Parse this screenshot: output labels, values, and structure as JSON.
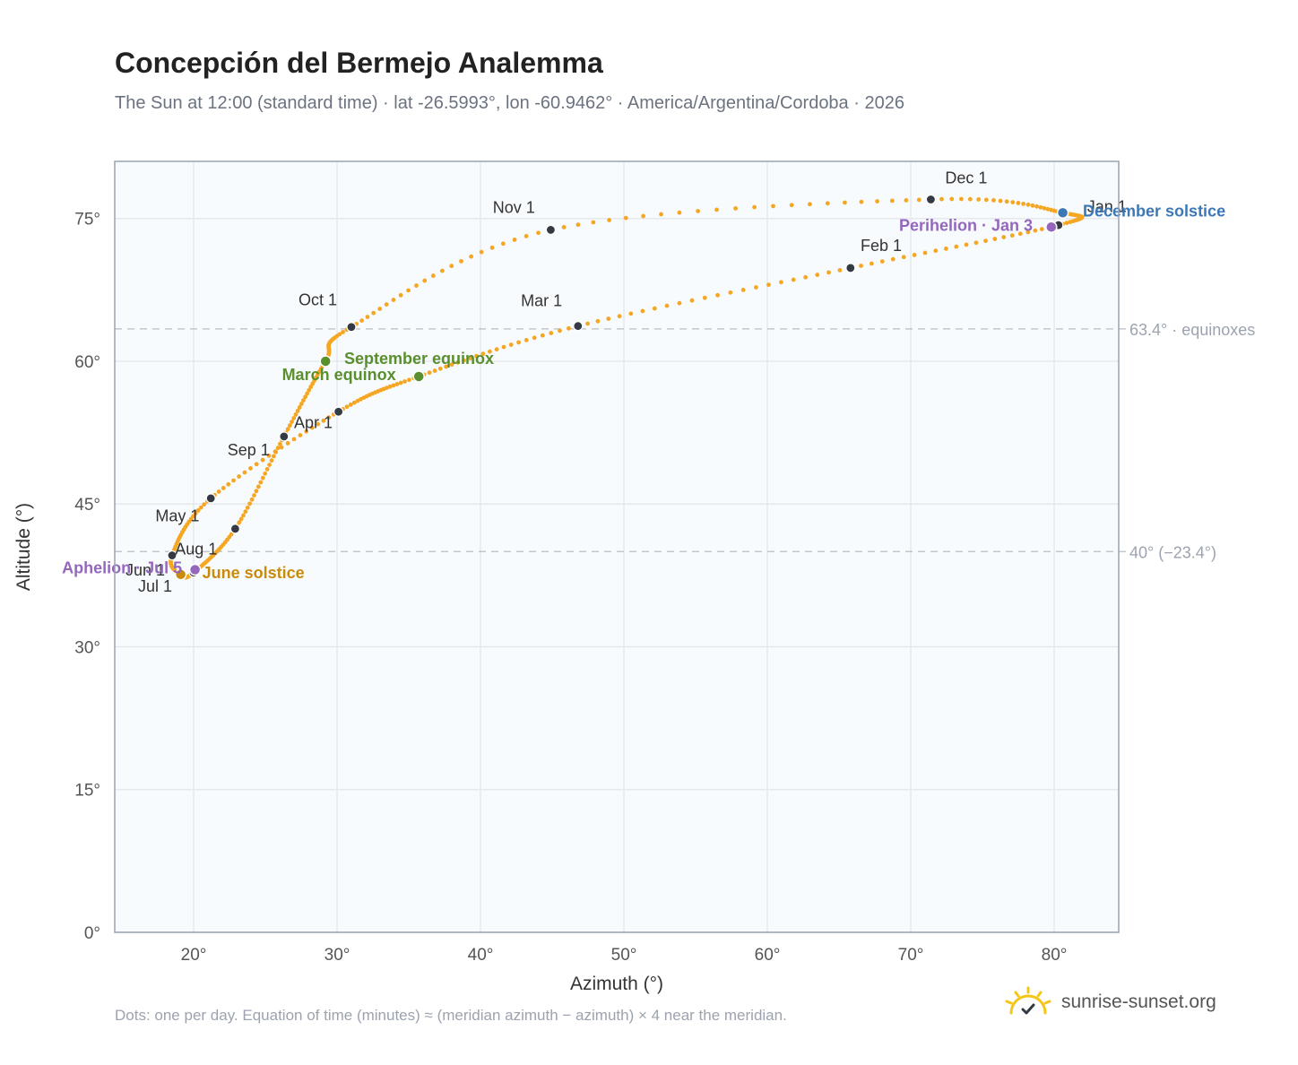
{
  "header": {
    "title": "Concepción del Bermejo Analemma",
    "subtitle": "The Sun at 12:00 (standard time) · lat -26.5993°, lon -60.9462° · America/Argentina/Cordoba · 2026"
  },
  "footer": {
    "note": "Dots: one per day. Equation of time (minutes) ≈ (meridian azimuth − azimuth) × 4 near the meridian.",
    "brand": "sunrise-sunset.org",
    "brand_icon": "sun-logo-icon"
  },
  "colors": {
    "curve": "#f5a623",
    "month_marker": "#333a44",
    "equinox": "#5a8f2e",
    "june_solstice": "#c98b0c",
    "december_solstice": "#3c78b5",
    "apsis": "#9467bd",
    "reference_line": "#c3c7cc",
    "plot_background": "#f8fbfe",
    "grid": "#e5e9ee"
  },
  "chart_data": {
    "type": "scatter",
    "title": "Concepción del Bermejo Analemma",
    "xlabel": "Azimuth (°)",
    "ylabel": "Altitude (°)",
    "xlim": [
      14.5,
      84.5
    ],
    "ylim": [
      0,
      81
    ],
    "xticks": [
      20,
      30,
      40,
      50,
      60,
      70,
      80
    ],
    "yticks": [
      0,
      15,
      30,
      45,
      60,
      75
    ],
    "tick_suffix": "°",
    "grid": true,
    "reference_lines": [
      {
        "y": 63.4,
        "label": "63.4° · equinoxes"
      },
      {
        "y": 40.0,
        "label": "40° (−23.4°)"
      }
    ],
    "curve_anchors": [
      {
        "date": "Jan 1",
        "x": 80.3,
        "y": 74.3
      },
      {
        "date": "Feb 1",
        "x": 65.8,
        "y": 69.8
      },
      {
        "date": "Mar 1",
        "x": 46.8,
        "y": 63.7
      },
      {
        "date": "Mar 20",
        "x": 35.7,
        "y": 58.4
      },
      {
        "date": "Apr 1",
        "x": 30.1,
        "y": 54.7
      },
      {
        "date": "May 1",
        "x": 21.2,
        "y": 45.6
      },
      {
        "date": "Jun 1",
        "x": 18.5,
        "y": 39.6
      },
      {
        "date": "Jun 21",
        "x": 19.1,
        "y": 37.6
      },
      {
        "date": "Jul 1",
        "x": 20.0,
        "y": 37.8
      },
      {
        "date": "Aug 1",
        "x": 22.9,
        "y": 42.4
      },
      {
        "date": "Sep 1",
        "x": 26.3,
        "y": 52.1
      },
      {
        "date": "Sep 22",
        "x": 29.2,
        "y": 60.0
      },
      {
        "date": "Oct 1",
        "x": 31.0,
        "y": 63.6
      },
      {
        "date": "Nov 1",
        "x": 44.9,
        "y": 73.8
      },
      {
        "date": "Dec 1",
        "x": 71.4,
        "y": 77.0
      },
      {
        "date": "Dec 21",
        "x": 80.6,
        "y": 75.6
      },
      {
        "date": "Jan 1",
        "x": 80.3,
        "y": 74.3
      }
    ],
    "month_markers": [
      {
        "label": "Jan 1",
        "x": 80.3,
        "y": 74.3,
        "lx": 82.3,
        "ly": 75.7,
        "anchor": "start"
      },
      {
        "label": "Feb 1",
        "x": 65.8,
        "y": 69.8,
        "lx": 66.5,
        "ly": 71.6,
        "anchor": "start"
      },
      {
        "label": "Mar 1",
        "x": 46.8,
        "y": 63.7,
        "lx": 45.7,
        "ly": 65.8,
        "anchor": "end"
      },
      {
        "label": "Apr 1",
        "x": 30.1,
        "y": 54.7,
        "lx": 27.0,
        "ly": 53.0,
        "anchor": "start"
      },
      {
        "label": "May 1",
        "x": 21.2,
        "y": 45.6,
        "lx": 20.4,
        "ly": 43.2,
        "anchor": "end"
      },
      {
        "label": "Jun 1",
        "x": 18.5,
        "y": 39.6,
        "lx": 18.0,
        "ly": 37.5,
        "anchor": "end"
      },
      {
        "label": "Jul 1",
        "x": 20.0,
        "y": 37.8,
        "lx": 18.5,
        "ly": 35.8,
        "anchor": "end"
      },
      {
        "label": "Aug 1",
        "x": 22.9,
        "y": 42.4,
        "lx": 18.7,
        "ly": 39.7,
        "anchor": "start"
      },
      {
        "label": "Sep 1",
        "x": 26.3,
        "y": 52.1,
        "lx": 25.3,
        "ly": 50.1,
        "anchor": "end"
      },
      {
        "label": "Oct 1",
        "x": 31.0,
        "y": 63.6,
        "lx": 30.0,
        "ly": 65.9,
        "anchor": "end"
      },
      {
        "label": "Nov 1",
        "x": 44.9,
        "y": 73.8,
        "lx": 43.8,
        "ly": 75.6,
        "anchor": "end"
      },
      {
        "label": "Dec 1",
        "x": 71.4,
        "y": 77.0,
        "lx": 72.4,
        "ly": 78.7,
        "anchor": "start"
      }
    ],
    "special_points": [
      {
        "label": "March equinox",
        "x": 35.7,
        "y": 58.4,
        "color_key": "equinox",
        "lx": 34.1,
        "ly": 58.0,
        "anchor": "end"
      },
      {
        "label": "September equinox",
        "x": 29.2,
        "y": 60.0,
        "color_key": "equinox",
        "lx": 30.5,
        "ly": 59.7,
        "anchor": "start"
      },
      {
        "label": "June solstice",
        "x": 19.1,
        "y": 37.6,
        "color_key": "june_solstice",
        "lx": 20.6,
        "ly": 37.2,
        "anchor": "start"
      },
      {
        "label": "December solstice",
        "x": 80.6,
        "y": 75.6,
        "color_key": "december_solstice",
        "lx": 82.0,
        "ly": 75.2,
        "anchor": "start"
      },
      {
        "label": "Perihelion · Jan 3",
        "x": 79.8,
        "y": 74.1,
        "color_key": "apsis",
        "lx": 78.5,
        "ly": 73.7,
        "anchor": "end"
      },
      {
        "label": "Aphelion · Jul 5",
        "x": 20.1,
        "y": 38.1,
        "color_key": "apsis",
        "lx": 19.2,
        "ly": 37.7,
        "anchor": "end"
      }
    ]
  }
}
